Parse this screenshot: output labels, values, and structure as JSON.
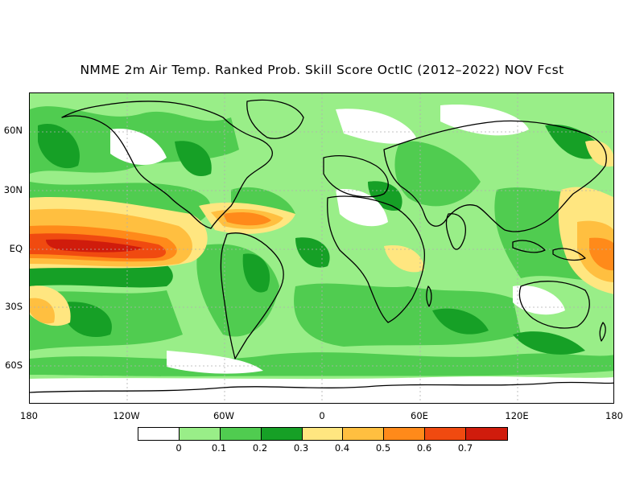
{
  "title": "NMME 2m Air Temp. Ranked Prob. Skill Score OctIC (2012–2022) NOV Fcst",
  "map": {
    "type": "heatmap",
    "projection": "equirectangular",
    "lon_range": [
      -180,
      180
    ],
    "lat_range": [
      -80,
      80
    ],
    "lat_ticks": [
      "60N",
      "30N",
      "EQ",
      "30S",
      "60S"
    ],
    "lon_ticks": [
      "180",
      "120W",
      "60W",
      "0",
      "60E",
      "120E",
      "180"
    ],
    "colors": {
      "c0": "#ffffff",
      "c1": "#99ee88",
      "c2": "#50cc50",
      "c3": "#16a026",
      "c4": "#ffe680",
      "c5": "#ffbf40",
      "c6": "#ff8a1a",
      "c7": "#f04a10",
      "c8": "#d01c0c",
      "c9": "#a40a00",
      "coast": "#000000",
      "grid": "#b0b0b0"
    }
  },
  "colorbar": {
    "labels": [
      "0",
      "0.1",
      "0.2",
      "0.3",
      "0.4",
      "0.5",
      "0.6",
      "0.7"
    ],
    "swatches": [
      "#ffffff",
      "#99ee88",
      "#50cc50",
      "#16a026",
      "#ffe680",
      "#ffbf40",
      "#ff8a1a",
      "#f04a10",
      "#d01c0c",
      "#a40a00"
    ]
  }
}
